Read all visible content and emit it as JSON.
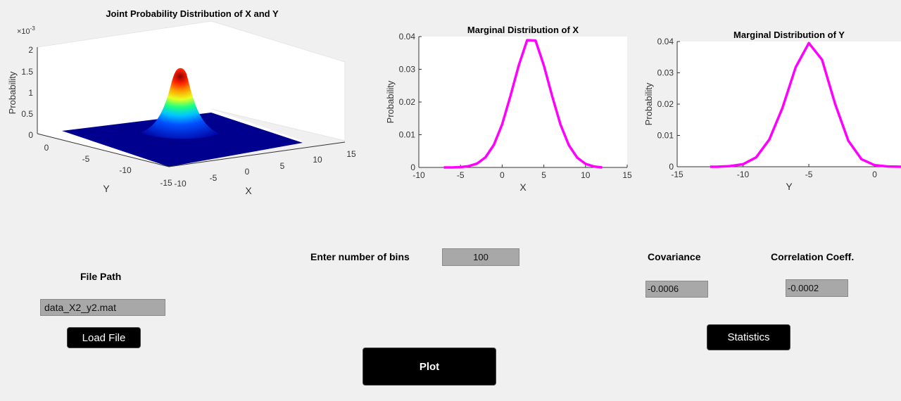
{
  "joint_plot": {
    "title": "Joint Probability Distribution of X and Y",
    "exponent": "×10",
    "exponent_power": "-3",
    "zlabel": "Probability",
    "xlabel": "X",
    "ylabel": "Y",
    "z_ticks": [
      "2",
      "1.5",
      "1",
      "0.5",
      "0"
    ],
    "x_ticks": [
      "-10",
      "-5",
      "0",
      "5",
      "10",
      "15"
    ],
    "y_ticks": [
      "0",
      "-5",
      "-10",
      "-15"
    ],
    "colors": {
      "peak": "#8b0000",
      "base": "#00008f"
    }
  },
  "chart_data": [
    {
      "type": "line",
      "title": "Marginal Distribution of X",
      "xlabel": "X",
      "ylabel": "Probability",
      "xlim": [
        -10,
        15
      ],
      "ylim": [
        0,
        0.04
      ],
      "x_ticks": [
        "-10",
        "-5",
        "0",
        "5",
        "10",
        "15"
      ],
      "y_ticks": [
        "0",
        "0.01",
        "0.02",
        "0.03",
        "0.04"
      ],
      "color": "#ff00ff",
      "x": [
        -7,
        -6,
        -5,
        -4,
        -3,
        -2,
        -1,
        0,
        1,
        2,
        3,
        4,
        5,
        6,
        7,
        8,
        9,
        10,
        11,
        12
      ],
      "y": [
        0.0,
        0.0,
        0.0001,
        0.0004,
        0.0012,
        0.0031,
        0.0069,
        0.0132,
        0.0219,
        0.0313,
        0.0389,
        0.0388,
        0.0312,
        0.0218,
        0.0131,
        0.0068,
        0.003,
        0.0011,
        0.0003,
        0.0
      ]
    },
    {
      "type": "line",
      "title": "Marginal Distribution of Y",
      "xlabel": "Y",
      "ylabel": "Probability",
      "xlim": [
        -15,
        2
      ],
      "ylim": [
        0,
        0.04
      ],
      "x_ticks": [
        "-15",
        "-10",
        "-5",
        "0"
      ],
      "y_ticks": [
        "0",
        "0.01",
        "0.02",
        "0.03",
        "0.04"
      ],
      "color": "#ff00ff",
      "x": [
        -12.5,
        -12,
        -11,
        -10,
        -9,
        -8,
        -7,
        -6,
        -5,
        -4,
        -3,
        -2,
        -1,
        0,
        1,
        2
      ],
      "y": [
        0.0,
        0.0,
        0.0002,
        0.0008,
        0.003,
        0.0087,
        0.0188,
        0.0318,
        0.0395,
        0.0342,
        0.02,
        0.0083,
        0.0024,
        0.0005,
        0.0001,
        0.0
      ]
    }
  ],
  "controls": {
    "bins_label": "Enter number of bins",
    "bins_value": "100",
    "file_path_label": "File Path",
    "file_path_value": "data_X2_y2.mat",
    "load_button": "Load File",
    "plot_button": "Plot",
    "covariance_label": "Covariance",
    "covariance_value": "-0.0006",
    "correlation_label": "Correlation Coeff.",
    "correlation_value": "-0.0002",
    "statistics_button": "Statistics"
  }
}
